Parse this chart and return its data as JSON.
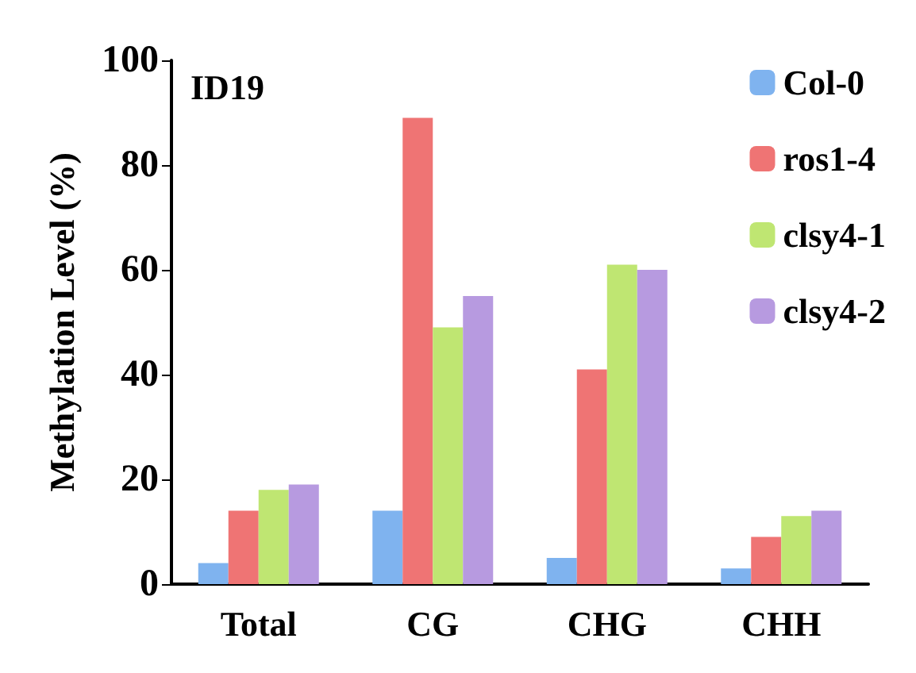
{
  "chart_data": {
    "type": "bar",
    "ylabel": "Methylation Level (%)",
    "annotations": [
      "ID19"
    ],
    "categories": [
      "Total",
      "CG",
      "CHG",
      "CHH"
    ],
    "series": [
      {
        "name": "Col-0",
        "color": "#7fb3ef",
        "values": [
          4,
          14,
          5,
          3
        ]
      },
      {
        "name": "ros1-4",
        "color": "#ef7474",
        "values": [
          14,
          89,
          41,
          9
        ]
      },
      {
        "name": "clsy4-1",
        "color": "#bfe672",
        "values": [
          18,
          49,
          61,
          13
        ]
      },
      {
        "name": "clsy4-2",
        "color": "#b79ae0",
        "values": [
          19,
          55,
          60,
          14
        ]
      }
    ],
    "ylim": [
      0,
      100
    ],
    "yticks": [
      0,
      20,
      40,
      60,
      80,
      100
    ],
    "grid": false,
    "legend": "top right"
  }
}
